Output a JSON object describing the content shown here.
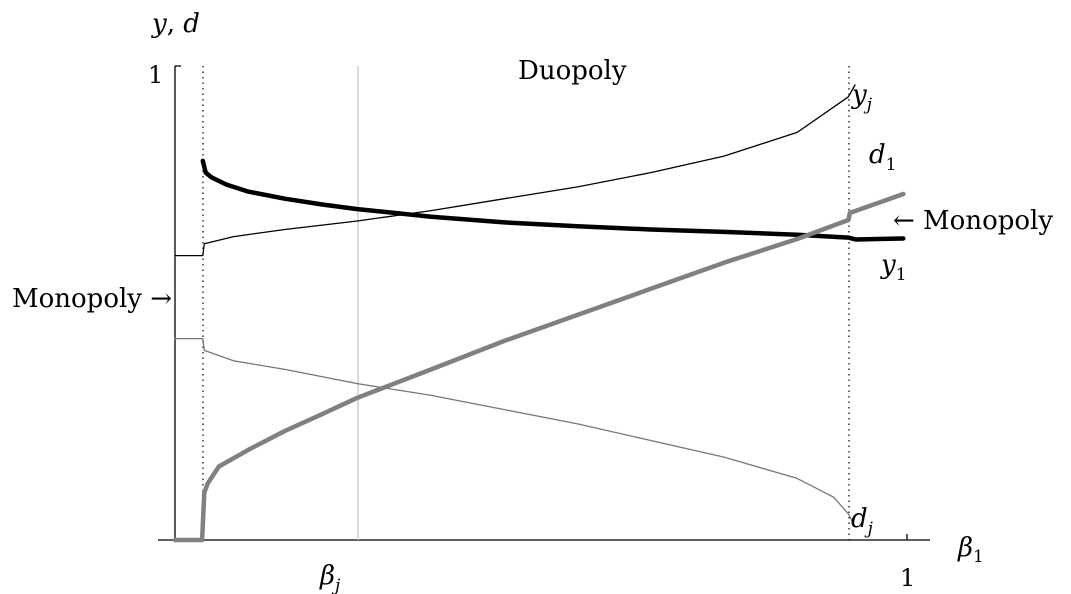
{
  "chart_data": {
    "type": "line",
    "title": "",
    "xlabel": "β1",
    "ylabel": "y, d",
    "xlim": [
      0,
      1
    ],
    "ylim": [
      0,
      1
    ],
    "x_ticks": [
      {
        "value": 1,
        "label": "1"
      }
    ],
    "y_ticks": [
      {
        "value": 1,
        "label": "1"
      }
    ],
    "special_x": [
      {
        "value": 0.249,
        "label": "βj",
        "style": "light-gray-line"
      }
    ],
    "regime_bounds": [
      0.038,
      0.92
    ],
    "annotations": {
      "duopoly": "Duopoly",
      "monopoly_left": "Monopoly →",
      "monopoly_right": "← Monopoly"
    },
    "series": [
      {
        "name": "yj",
        "color": "#000000",
        "width": "thin",
        "points": [
          [
            0,
            0.6
          ],
          [
            0.038,
            0.6
          ],
          [
            0.04,
            0.625
          ],
          [
            0.08,
            0.64
          ],
          [
            0.15,
            0.655
          ],
          [
            0.249,
            0.673
          ],
          [
            0.35,
            0.695
          ],
          [
            0.45,
            0.72
          ],
          [
            0.55,
            0.745
          ],
          [
            0.65,
            0.775
          ],
          [
            0.75,
            0.81
          ],
          [
            0.85,
            0.86
          ],
          [
            0.92,
            0.935
          ],
          [
            0.929,
            0.96
          ]
        ]
      },
      {
        "name": "y1",
        "color": "#000000",
        "width": "thick",
        "points": [
          [
            0.038,
            0.8
          ],
          [
            0.042,
            0.775
          ],
          [
            0.05,
            0.765
          ],
          [
            0.07,
            0.75
          ],
          [
            0.1,
            0.735
          ],
          [
            0.15,
            0.72
          ],
          [
            0.2,
            0.708
          ],
          [
            0.249,
            0.698
          ],
          [
            0.35,
            0.682
          ],
          [
            0.45,
            0.67
          ],
          [
            0.55,
            0.662
          ],
          [
            0.65,
            0.655
          ],
          [
            0.75,
            0.65
          ],
          [
            0.85,
            0.644
          ],
          [
            0.92,
            0.638
          ],
          [
            0.93,
            0.634
          ],
          [
            0.96,
            0.635
          ],
          [
            0.995,
            0.636
          ]
        ]
      },
      {
        "name": "dj",
        "color": "#777777",
        "width": "thin",
        "points": [
          [
            0,
            0.425
          ],
          [
            0.038,
            0.425
          ],
          [
            0.04,
            0.4
          ],
          [
            0.08,
            0.378
          ],
          [
            0.15,
            0.36
          ],
          [
            0.249,
            0.33
          ],
          [
            0.35,
            0.305
          ],
          [
            0.45,
            0.275
          ],
          [
            0.55,
            0.245
          ],
          [
            0.65,
            0.21
          ],
          [
            0.75,
            0.175
          ],
          [
            0.85,
            0.13
          ],
          [
            0.9,
            0.09
          ],
          [
            0.92,
            0.055
          ],
          [
            0.925,
            0.04
          ]
        ]
      },
      {
        "name": "d1",
        "color": "#808080",
        "width": "thick",
        "points": [
          [
            0,
            0
          ],
          [
            0.037,
            0
          ],
          [
            0.04,
            0.1
          ],
          [
            0.045,
            0.12
          ],
          [
            0.06,
            0.155
          ],
          [
            0.1,
            0.19
          ],
          [
            0.15,
            0.23
          ],
          [
            0.2,
            0.265
          ],
          [
            0.249,
            0.3
          ],
          [
            0.35,
            0.36
          ],
          [
            0.45,
            0.42
          ],
          [
            0.55,
            0.475
          ],
          [
            0.65,
            0.53
          ],
          [
            0.75,
            0.585
          ],
          [
            0.85,
            0.635
          ],
          [
            0.92,
            0.675
          ],
          [
            0.922,
            0.69
          ],
          [
            0.995,
            0.73
          ]
        ]
      }
    ]
  },
  "labels": {
    "y_axis": "y, d",
    "x_axis": "β1",
    "y_tick_1": "1",
    "x_tick_1": "1",
    "beta_j": "βj",
    "duopoly": "Duopoly",
    "monopoly_left": "Monopoly →",
    "monopoly_right": "← Monopoly",
    "yj": "yj",
    "y1": "y1",
    "d1": "d1",
    "dj": "dj"
  }
}
